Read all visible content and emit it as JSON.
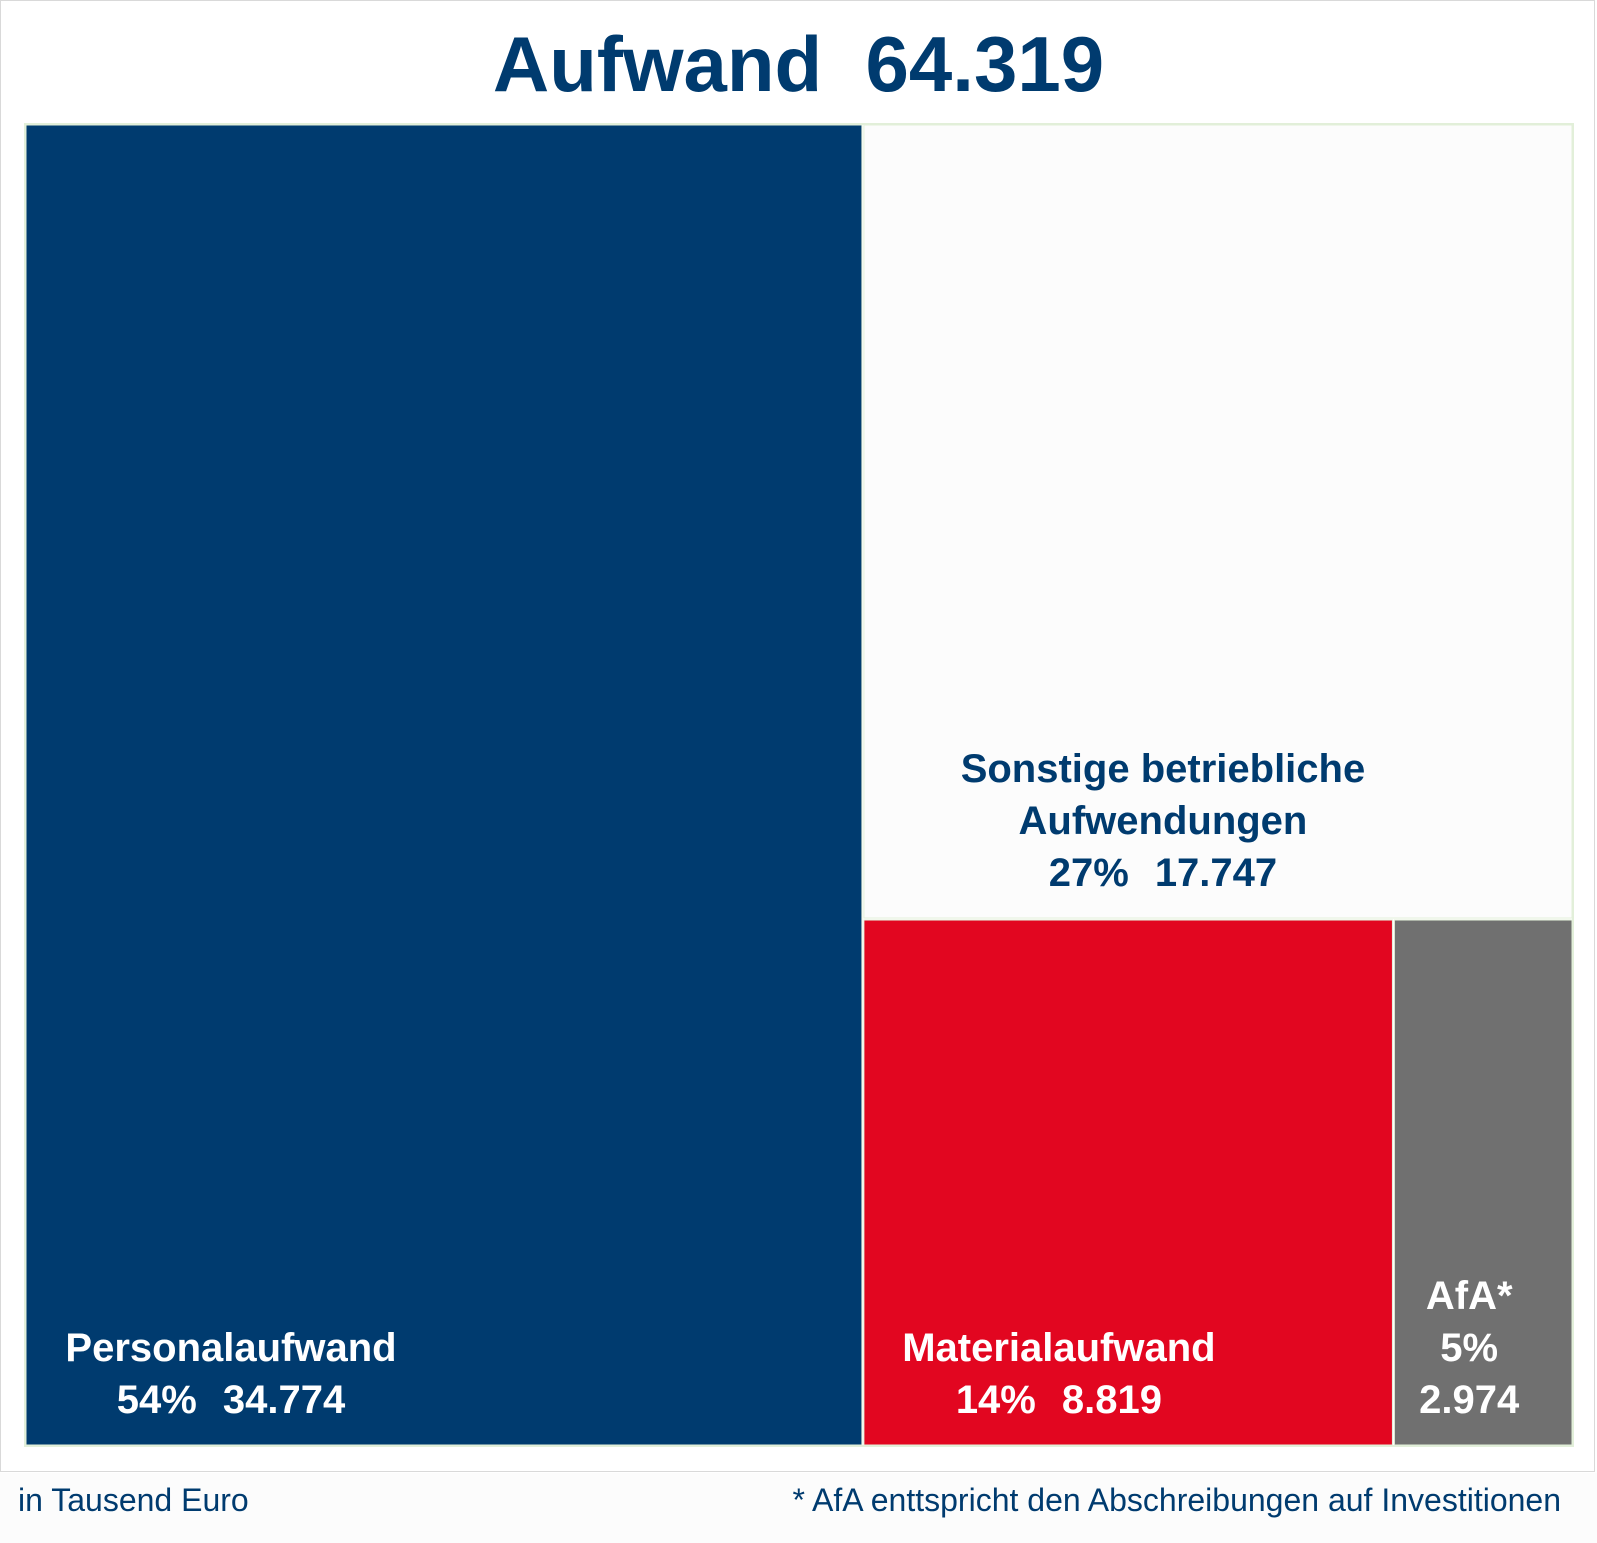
{
  "chart_data": {
    "type": "treemap",
    "title": "Aufwand  64.319",
    "total": 64319,
    "categories": [
      "Personalaufwand",
      "Sonstige betriebliche Aufwendungen",
      "Materialaufwand",
      "AfA*"
    ],
    "items": [
      {
        "id": "personal",
        "label_lines": [
          "Personalaufwand"
        ],
        "percent_text": "54%",
        "value_text": "34.774",
        "value": 34774,
        "percent": 54,
        "color": "#003b6f",
        "text_color": "#ffffff"
      },
      {
        "id": "sonstige",
        "label_lines": [
          "Sonstige betriebliche",
          "Aufwendungen"
        ],
        "percent_text": "27%",
        "value_text": "17.747",
        "value": 17747,
        "percent": 27,
        "color": "#fcfcfc",
        "text_color": "#003b6f"
      },
      {
        "id": "material",
        "label_lines": [
          "Materialaufwand"
        ],
        "percent_text": "14%",
        "value_text": "8.819",
        "value": 8819,
        "percent": 14,
        "color": "#e20620",
        "text_color": "#ffffff"
      },
      {
        "id": "afa",
        "label_lines": [
          "AfA*"
        ],
        "percent_text": "5%",
        "value_text": "2.974",
        "value": 2974,
        "percent": 5,
        "color": "#707070",
        "text_color": "#ffffff"
      }
    ],
    "tile_border_color": "#e2efd9"
  },
  "footer": {
    "unit_note": "in Tausend Euro",
    "afa_note": "* AfA enttspricht den Abschreibungen auf Investitionen"
  }
}
